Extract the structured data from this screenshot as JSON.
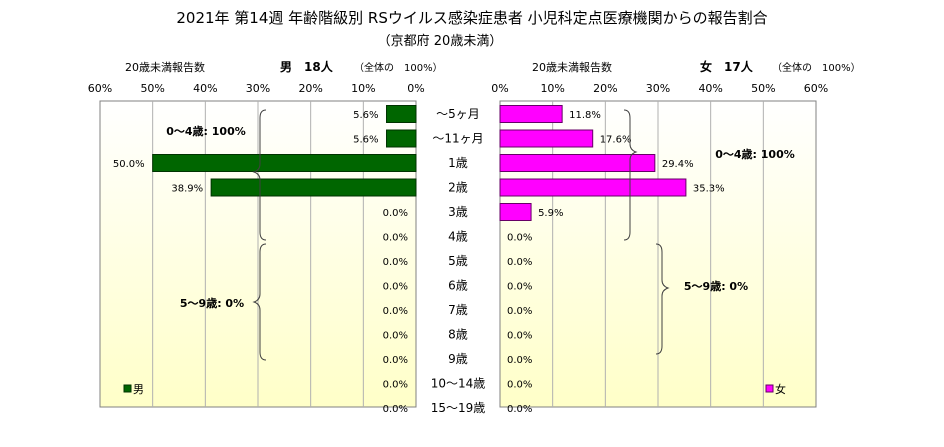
{
  "title": "2021年 第14週 年齢階級別 RSウイルス感染症患者 小児科定点医療機関からの報告割合",
  "subtitle": "（京都府 20歳未満）",
  "colors": {
    "male": "#006600",
    "female": "#ff00ff",
    "male_edge": "#003300",
    "female_edge": "#660066",
    "plot_top": "#ffffff",
    "plot_bottom": "#ffffc8"
  },
  "chart_data": {
    "type": "bar",
    "orientation": "horizontal-butterfly",
    "categories": [
      "～5ヶ月",
      "～11ヶ月",
      "1歳",
      "2歳",
      "3歳",
      "4歳",
      "5歳",
      "6歳",
      "7歳",
      "8歳",
      "9歳",
      "10～14歳",
      "15～19歳"
    ],
    "xlim": [
      0,
      60
    ],
    "ticks": [
      "60%",
      "50%",
      "40%",
      "30%",
      "20%",
      "10%",
      "0%"
    ],
    "ticks_right": [
      "0%",
      "10%",
      "20%",
      "30%",
      "40%",
      "50%",
      "60%"
    ],
    "grid": true,
    "legend_position": "bottom-left / bottom-right",
    "series": [
      {
        "name": "男",
        "values": [
          5.6,
          5.6,
          50.0,
          38.9,
          0.0,
          0.0,
          0.0,
          0.0,
          0.0,
          0.0,
          0.0,
          0.0,
          0.0
        ],
        "labels": [
          "5.6%",
          "5.6%",
          "50.0%",
          "38.9%",
          "0.0%",
          "0.0%",
          "0.0%",
          "0.0%",
          "0.0%",
          "0.0%",
          "0.0%",
          "0.0%",
          "0.0%"
        ]
      },
      {
        "name": "女",
        "values": [
          11.8,
          17.6,
          29.4,
          35.3,
          5.9,
          0.0,
          0.0,
          0.0,
          0.0,
          0.0,
          0.0,
          0.0,
          0.0
        ],
        "labels": [
          "11.8%",
          "17.6%",
          "29.4%",
          "35.3%",
          "5.9%",
          "0.0%",
          "0.0%",
          "0.0%",
          "0.0%",
          "0.0%",
          "0.0%",
          "0.0%",
          "0.0%"
        ]
      }
    ],
    "male_header": {
      "caption": "20歳未満報告数",
      "total": "男　18人",
      "note": "（全体の　100%）"
    },
    "female_header": {
      "caption": "20歳未満報告数",
      "total": "女　17人",
      "note": "（全体の　100%）"
    },
    "annotations": {
      "male_0_4": "0～4歳: 100%",
      "male_5_9": "5～9歳: 0%",
      "female_0_4": "0～4歳: 100%",
      "female_5_9": "5～9歳: 0%"
    },
    "legend": {
      "male": "男",
      "female": "女"
    }
  }
}
